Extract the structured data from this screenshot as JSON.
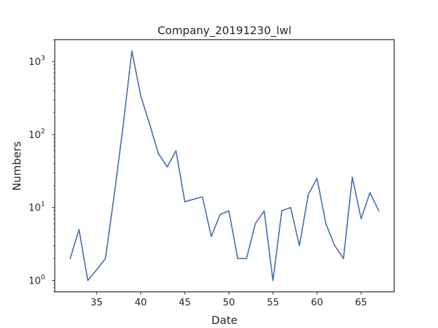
{
  "chart_data": {
    "type": "line",
    "title": "Company_20191230_lwl",
    "xlabel": "Date",
    "ylabel": "Numbers",
    "yscale": "log",
    "xlim": [
      30.25,
      68.75
    ],
    "ylim": [
      0.7,
      2000
    ],
    "x_ticks": [
      35,
      40,
      45,
      50,
      55,
      60,
      65
    ],
    "y_ticks": [
      {
        "value": 1,
        "base": "10",
        "exp": "0"
      },
      {
        "value": 10,
        "base": "10",
        "exp": "1"
      },
      {
        "value": 100,
        "base": "10",
        "exp": "2"
      },
      {
        "value": 1000,
        "base": "10",
        "exp": "3"
      }
    ],
    "grid": false,
    "line_color": "#4c72b0",
    "series": [
      {
        "name": "Numbers",
        "x": [
          32,
          33,
          34,
          35,
          36,
          37,
          38,
          39,
          40,
          41,
          42,
          43,
          44,
          45,
          46,
          47,
          48,
          49,
          50,
          51,
          52,
          53,
          54,
          55,
          56,
          57,
          58,
          59,
          60,
          61,
          62,
          63,
          64,
          65,
          66,
          67
        ],
        "y": [
          2,
          5,
          1,
          1.4,
          2,
          15,
          130,
          1400,
          340,
          140,
          55,
          36,
          60,
          12,
          13,
          14,
          4,
          8,
          9,
          2,
          2,
          6,
          9,
          1,
          9,
          10,
          3,
          15,
          25,
          6,
          3,
          2,
          26,
          7,
          16,
          9
        ]
      }
    ]
  }
}
